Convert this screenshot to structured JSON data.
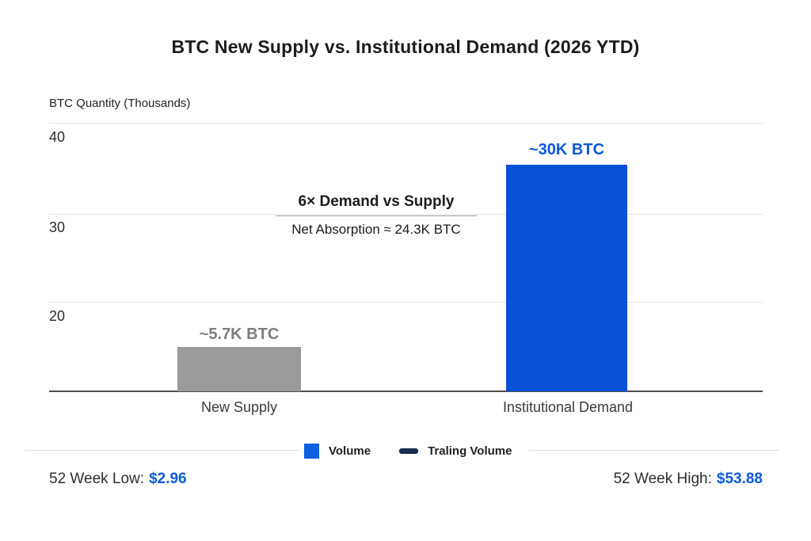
{
  "title": "BTC New Supply vs. Institutional Demand (2026 YTD)",
  "colors": {
    "demand_blue": "#0a50d6",
    "supply_gray": "#9b9b9d",
    "legend_navy": "#1a2c52",
    "stat_blue": "#0b5bd8"
  },
  "chart_data": {
    "type": "bar",
    "title": "BTC New Supply vs. Institutional Demand (2026 YTD)",
    "xlabel": "",
    "ylabel": "BTC Quantity (Thousands)",
    "categories": [
      "New Supply",
      "Institutional Demand"
    ],
    "values": [
      5.7,
      30
    ],
    "bar_labels": [
      "~5.7K BTC",
      "~30K BTC"
    ],
    "bar_colors": [
      "#9b9b9d",
      "#0a50d6"
    ],
    "unit": "K BTC",
    "yticks": [
      "40",
      "30",
      "20"
    ],
    "grid": true,
    "legend_position": "bottom",
    "annotation": {
      "headline": "6× Demand vs Supply",
      "subtext": "Net Absorption ≈ 24.3K BTC"
    },
    "legend": [
      {
        "label": "Volume",
        "color": "#0f5fe0",
        "shape": "square"
      },
      {
        "label": "Traling Volume",
        "color": "#1a2c52",
        "shape": "dash"
      }
    ],
    "footer": {
      "low_label": "52 Week Low:",
      "low_value": "$2.96",
      "high_label": "52 Week High:",
      "high_value": "$53.88"
    }
  }
}
